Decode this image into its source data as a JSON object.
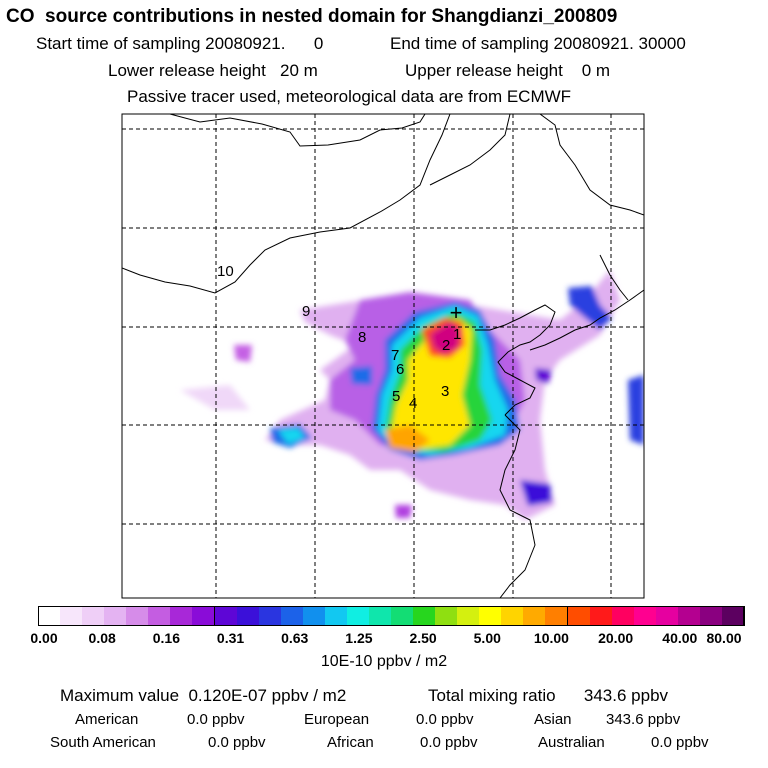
{
  "header": {
    "title": "CO  source contributions in nested domain for Shangdianzi_200809",
    "start_label": "Start time of sampling 20080921.      0",
    "end_label": "End time of sampling 20080921. 30000",
    "lower_release": "Lower release height   20 m",
    "upper_release": "Upper release height    0 m",
    "tracer_note": "Passive tracer used, meteorological data are from ECMWF"
  },
  "map": {
    "markers": [
      "1",
      "2",
      "3",
      "4",
      "5",
      "6",
      "7",
      "8",
      "9",
      "10"
    ],
    "site_marker": "+"
  },
  "colorbar": {
    "colors": [
      "#ffffff",
      "#f7e6fb",
      "#efcff7",
      "#e4b3f2",
      "#d68ce9",
      "#c45de1",
      "#a828d8",
      "#8a0cd8",
      "#5e06d6",
      "#3b10d9",
      "#2a35e0",
      "#1c62e9",
      "#1190ee",
      "#12c8f1",
      "#10eee2",
      "#0fe6ac",
      "#13dd74",
      "#27d61e",
      "#8fdf11",
      "#d4f00f",
      "#ffff00",
      "#ffd400",
      "#ffaa00",
      "#ff7f00",
      "#ff4d00",
      "#ff1a1a",
      "#ff0060",
      "#ff0090",
      "#e600a0",
      "#b40090",
      "#8a0080",
      "#5c0060"
    ],
    "tick_labels": [
      "0.00",
      "0.08",
      "0.16",
      "0.31",
      "0.63",
      "1.25",
      "2.50",
      "5.00",
      "10.00",
      "20.00",
      "40.00",
      "80.00"
    ],
    "units": "10E-10 ppbv / m2"
  },
  "summary": {
    "max_value": "Maximum value  0.120E-07 ppbv / m2",
    "total_mixing": "Total mixing ratio      343.6 ppbv",
    "american_label": "American",
    "american_value": "0.0 ppbv",
    "european_label": "European",
    "european_value": "0.0 ppbv",
    "asian_label": "Asian",
    "asian_value": "343.6 ppbv",
    "south_american_label": "South American",
    "south_american_value": "0.0 ppbv",
    "african_label": "African",
    "african_value": "0.0 ppbv",
    "australian_label": "Australian",
    "australian_value": "0.0 ppbv"
  }
}
